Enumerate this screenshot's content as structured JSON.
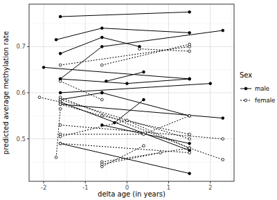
{
  "chart_data": {
    "type": "line",
    "x_label": "delta age (in years)",
    "y_label": "predicted average methylation rate",
    "legend_title": "Sex",
    "legend": "right",
    "grid": true,
    "xlim": [
      -2.35,
      2.57
    ],
    "ylim": [
      0.408,
      0.792
    ],
    "xticks": [
      -2,
      -1,
      0,
      1,
      2
    ],
    "yticks": [
      0.5,
      0.6,
      0.7
    ],
    "groups": [
      {
        "name": "male",
        "color": "#000000",
        "line_style": "solid",
        "marker": "filled",
        "series": [
          {
            "x": [
              -1.6,
              1.5
            ],
            "values": [
              0.765,
              0.775
            ]
          },
          {
            "x": [
              -1.7,
              -0.6,
              1.5
            ],
            "values": [
              0.715,
              0.74,
              0.73
            ]
          },
          {
            "x": [
              -1.6,
              -0.6,
              0.3
            ],
            "values": [
              0.685,
              0.72,
              0.7
            ]
          },
          {
            "x": [
              -2.0,
              1.5
            ],
            "values": [
              0.655,
              0.63
            ]
          },
          {
            "x": [
              -1.6,
              -0.6,
              2.3
            ],
            "values": [
              0.63,
              0.7,
              0.735
            ]
          },
          {
            "x": [
              -1.6,
              0.0,
              1.5
            ],
            "values": [
              0.63,
              0.62,
              0.63
            ]
          },
          {
            "x": [
              -0.5,
              0.4
            ],
            "values": [
              0.625,
              0.645
            ]
          },
          {
            "x": [
              -1.6,
              2.0
            ],
            "values": [
              0.6,
              0.62
            ]
          },
          {
            "x": [
              -0.6,
              1.5
            ],
            "values": [
              0.6,
              0.55
            ]
          },
          {
            "x": [
              -1.6,
              -0.6
            ],
            "values": [
              0.585,
              0.6
            ]
          },
          {
            "x": [
              -1.6,
              1.5
            ],
            "values": [
              0.58,
              0.475
            ]
          },
          {
            "x": [
              -0.3,
              0.4
            ],
            "values": [
              0.535,
              0.585
            ]
          },
          {
            "x": [
              -1.6,
              2.3
            ],
            "values": [
              0.575,
              0.545
            ]
          },
          {
            "x": [
              -1.6,
              1.5
            ],
            "values": [
              0.49,
              0.425
            ]
          },
          {
            "x": [
              -0.6,
              1.5
            ],
            "values": [
              0.53,
              0.49
            ]
          }
        ]
      },
      {
        "name": "female",
        "color": "#000000",
        "line_style": "dotted",
        "marker": "open",
        "series": [
          {
            "x": [
              -1.6,
              1.5
            ],
            "values": [
              0.66,
              0.7
            ]
          },
          {
            "x": [
              -0.6,
              1.5
            ],
            "values": [
              0.66,
              0.705
            ]
          },
          {
            "x": [
              0.3,
              1.5
            ],
            "values": [
              0.695,
              0.69
            ]
          },
          {
            "x": [
              -1.6,
              -0.6
            ],
            "values": [
              0.625,
              0.585
            ]
          },
          {
            "x": [
              -2.1,
              -1.6
            ],
            "values": [
              0.59,
              0.58
            ]
          },
          {
            "x": [
              -1.6,
              1.5
            ],
            "values": [
              0.59,
              0.48
            ]
          },
          {
            "x": [
              -1.6,
              1.5
            ],
            "values": [
              0.585,
              0.5
            ]
          },
          {
            "x": [
              -1.6,
              -0.6,
              1.5
            ],
            "values": [
              0.575,
              0.55,
              0.51
            ]
          },
          {
            "x": [
              -1.6,
              2.3
            ],
            "values": [
              0.53,
              0.5
            ]
          },
          {
            "x": [
              -1.6,
              0.4,
              1.5
            ],
            "values": [
              0.51,
              0.51,
              0.55
            ]
          },
          {
            "x": [
              -1.7,
              -1.6
            ],
            "values": [
              0.46,
              0.565
            ]
          },
          {
            "x": [
              -1.6,
              1.5
            ],
            "values": [
              0.49,
              0.47
            ]
          },
          {
            "x": [
              -0.6,
              0.4
            ],
            "values": [
              0.44,
              0.485
            ]
          },
          {
            "x": [
              -0.6,
              1.5,
              2.3
            ],
            "values": [
              0.45,
              0.48,
              0.455
            ]
          },
          {
            "x": [
              -0.6,
              0.8
            ],
            "values": [
              0.445,
              0.47
            ]
          },
          {
            "x": [
              -1.6,
              0.0,
              1.5
            ],
            "values": [
              0.505,
              0.54,
              0.48
            ]
          }
        ]
      }
    ]
  }
}
